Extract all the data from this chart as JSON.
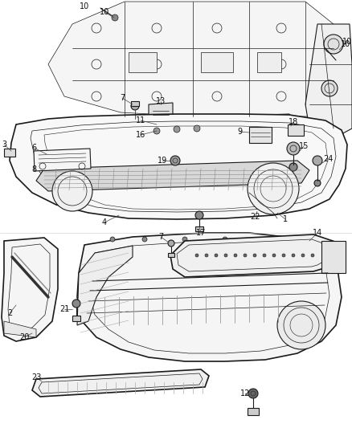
{
  "bg_color": "#ffffff",
  "fig_width": 4.38,
  "fig_height": 5.33,
  "line_color": "#1a1a1a",
  "text_color": "#111111",
  "font_size": 7.0,
  "dpi": 100
}
